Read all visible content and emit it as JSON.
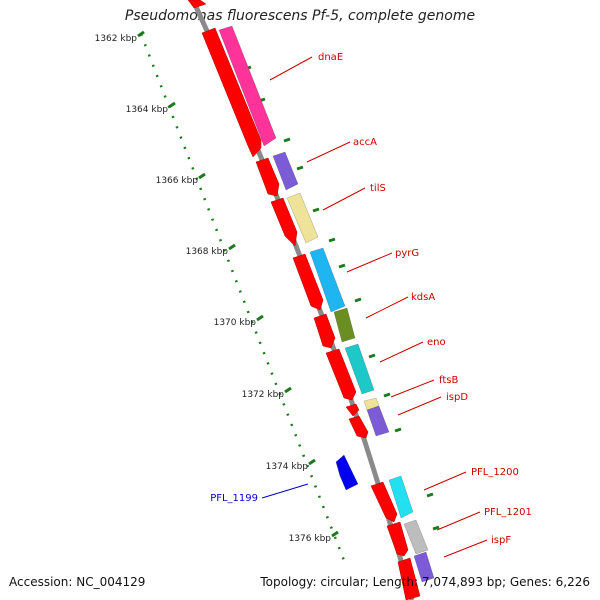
{
  "title": "Pseudomonas fluorescens Pf-5, complete genome",
  "footer": {
    "accession": "Accession: NC_004129",
    "summary": "Topology: circular; Length: 7,074,893 bp; Genes: 6,226"
  },
  "scale": {
    "unit": "kbp",
    "ticks": [
      "1362 kbp",
      "1364 kbp",
      "1366 kbp",
      "1368 kbp",
      "1370 kbp",
      "1372 kbp",
      "1374 kbp",
      "1376 kbp"
    ]
  },
  "colors": {
    "backbone": "#8a8a8a",
    "ruler": "#1e7a1e",
    "gene_label": "#cc0000",
    "reverse_label": "#0000cc"
  },
  "genes": [
    {
      "name": "dnaE",
      "strand": "+",
      "color": "#ff3399",
      "label_color": "#cc0000"
    },
    {
      "name": "accA",
      "strand": "+",
      "color": "#7b5cd6",
      "label_color": "#cc0000"
    },
    {
      "name": "tilS",
      "strand": "+",
      "color": "#efe39a",
      "label_color": "#cc0000"
    },
    {
      "name": "pyrG",
      "strand": "+",
      "color": "#1fb5f0",
      "label_color": "#cc0000"
    },
    {
      "name": "kdsA",
      "strand": "+",
      "color": "#6b8e23",
      "label_color": "#cc0000"
    },
    {
      "name": "eno",
      "strand": "+",
      "color": "#1fc8c8",
      "label_color": "#cc0000"
    },
    {
      "name": "ftsB",
      "strand": "+",
      "color": "#efe39a",
      "label_color": "#cc0000"
    },
    {
      "name": "ispD",
      "strand": "+",
      "color": "#7b5cd6",
      "label_color": "#cc0000"
    },
    {
      "name": "PFL_1199",
      "strand": "-",
      "color": "#0000ee",
      "label_color": "#0000cc"
    },
    {
      "name": "PFL_1200",
      "strand": "+",
      "color": "#22e0f0",
      "label_color": "#cc0000"
    },
    {
      "name": "PFL_1201",
      "strand": "+",
      "color": "#bdbdbd",
      "label_color": "#cc0000"
    },
    {
      "name": "ispF",
      "strand": "+",
      "color": "#7b5cd6",
      "label_color": "#cc0000"
    }
  ]
}
